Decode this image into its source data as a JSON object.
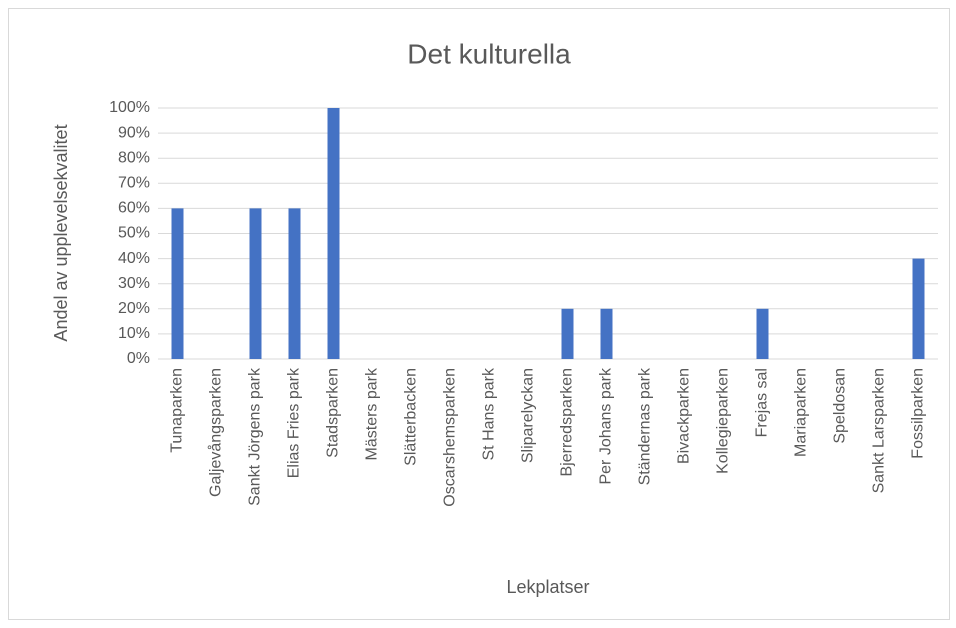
{
  "chart_data": {
    "type": "bar",
    "title": "Det kulturella",
    "x_label": "Lekplatser",
    "y_label": "Andel av upplevelsekvalitet",
    "categories": [
      "Tunaparken",
      "Galjevångsparken",
      "Sankt Jörgens park",
      "Elias Fries park",
      "Stadsparken",
      "Mästers park",
      "Slätterbacken",
      "Oscarshemsparken",
      "St Hans park",
      "Sliparelyckan",
      "Bjerredsparken",
      "Per Johans park",
      "Ständernas park",
      "Bivackparken",
      "Kollegieparken",
      "Frejas sal",
      "Mariaparken",
      "Speldosan",
      "Sankt Larsparken",
      "Fossilparken"
    ],
    "values": [
      60,
      0,
      60,
      60,
      100,
      0,
      0,
      0,
      0,
      0,
      20,
      20,
      0,
      0,
      0,
      20,
      0,
      0,
      0,
      40
    ],
    "color": "#4472c4",
    "ylim": [
      0,
      100
    ],
    "yticks": [
      {
        "value": 0,
        "label": "0%"
      },
      {
        "value": 10,
        "label": "10%"
      },
      {
        "value": 20,
        "label": "20%"
      },
      {
        "value": 30,
        "label": "30%"
      },
      {
        "value": 40,
        "label": "40%"
      },
      {
        "value": 50,
        "label": "50%"
      },
      {
        "value": 60,
        "label": "60%"
      },
      {
        "value": 70,
        "label": "70%"
      },
      {
        "value": 80,
        "label": "80%"
      },
      {
        "value": 90,
        "label": "90%"
      },
      {
        "value": 100,
        "label": "100%"
      }
    ],
    "grid": true
  }
}
